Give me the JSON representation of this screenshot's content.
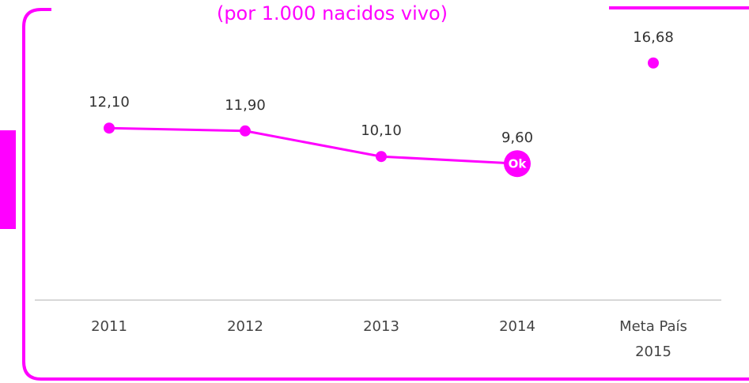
{
  "chart_data": {
    "type": "line",
    "subtitle": "(por 1.000 nacidos vivo)",
    "categories": [
      "2011",
      "2012",
      "2013",
      "2014",
      "Meta País 2015"
    ],
    "series": [
      {
        "color": "#ff00ff",
        "values": [
          12.1,
          11.9,
          10.1,
          9.6,
          null
        ],
        "value_labels": [
          "12,10",
          "11,90",
          "10,10",
          "9,60",
          null
        ]
      },
      {
        "color": "#ff00ff",
        "values": [
          null,
          null,
          null,
          null,
          16.68
        ],
        "value_labels": [
          null,
          null,
          null,
          null,
          "16,68"
        ]
      }
    ],
    "annotation": "Ok",
    "ylim": [
      0,
      19
    ]
  }
}
